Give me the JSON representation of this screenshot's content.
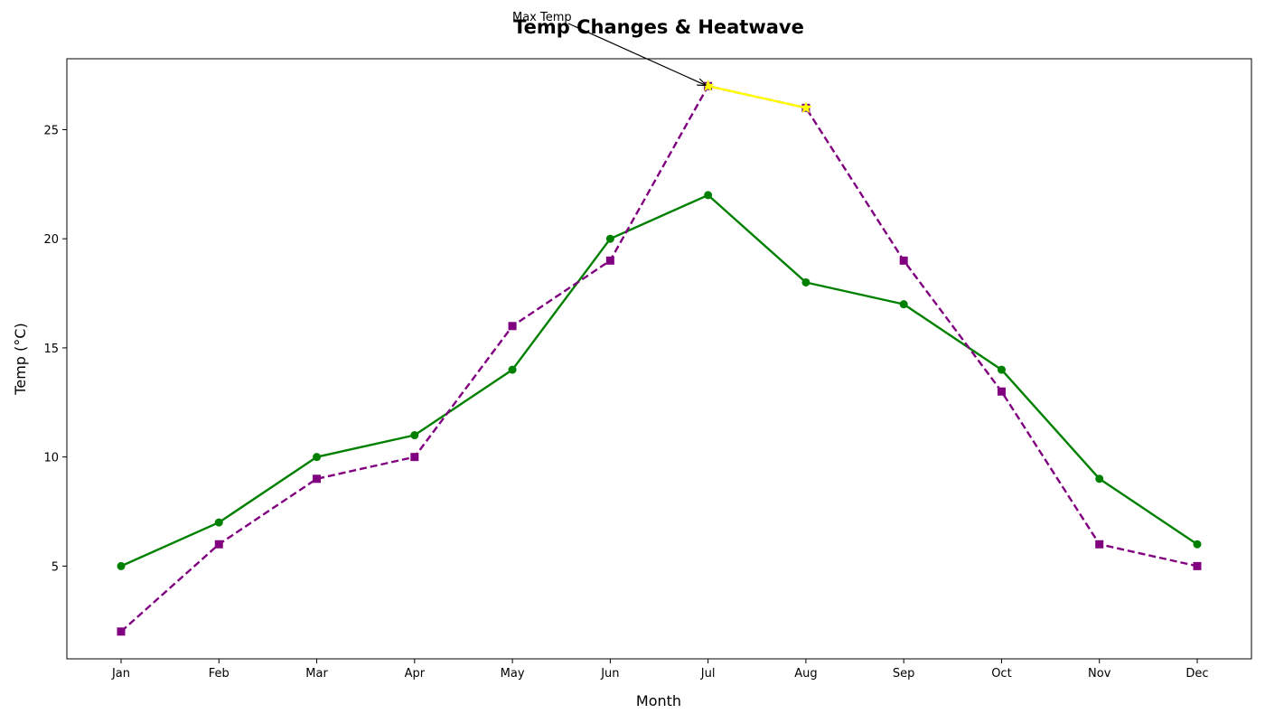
{
  "chart_data": {
    "type": "line",
    "title": "Temp Changes & Heatwave",
    "xlabel": "Month",
    "ylabel": "Temp (°C)",
    "categories": [
      "Jan",
      "Feb",
      "Mar",
      "Apr",
      "May",
      "Jun",
      "Jul",
      "Aug",
      "Sep",
      "Oct",
      "Nov",
      "Dec"
    ],
    "yticks": [
      5,
      10,
      15,
      20,
      25
    ],
    "ylim": [
      0.75,
      28.25
    ],
    "grid": false,
    "legend": "none",
    "series": [
      {
        "values": [
          5,
          7,
          10,
          11,
          14,
          20,
          22,
          18,
          17,
          14,
          9,
          6
        ],
        "color": "#008000",
        "style": "solid",
        "marker": "circle"
      },
      {
        "values": [
          2,
          6,
          9,
          10,
          16,
          19,
          27,
          26,
          19,
          13,
          6,
          5
        ],
        "color": "#800080",
        "style": "dashed",
        "marker": "square"
      }
    ],
    "highlight": {
      "categories": [
        "Jul",
        "Aug"
      ],
      "values": [
        27,
        26
      ],
      "color": "#ffff00",
      "marker": "star"
    },
    "annotation": {
      "text": "Max Temp",
      "target_category": "Jul",
      "target_value": 27
    }
  }
}
